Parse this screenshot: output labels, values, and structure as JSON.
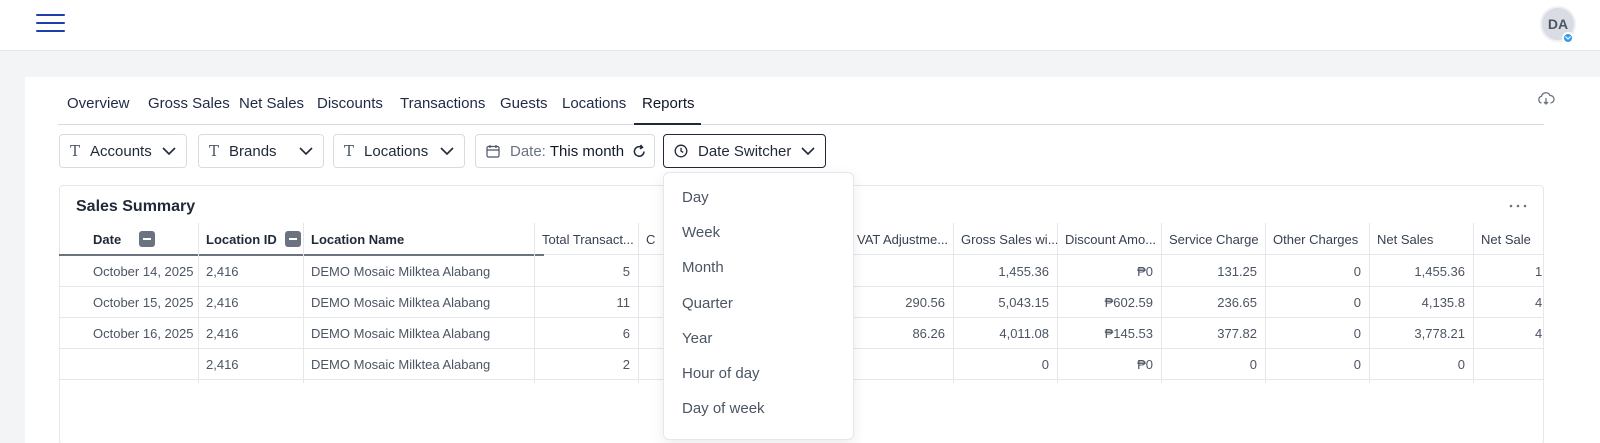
{
  "header": {
    "avatar_initials": "DA"
  },
  "tabs": [
    {
      "label": "Overview"
    },
    {
      "label": "Gross Sales"
    },
    {
      "label": "Net Sales"
    },
    {
      "label": "Discounts"
    },
    {
      "label": "Transactions"
    },
    {
      "label": "Guests"
    },
    {
      "label": "Locations"
    },
    {
      "label": "Reports",
      "active": true
    }
  ],
  "filters": {
    "accounts": "Accounts",
    "brands": "Brands",
    "locations": "Locations",
    "date_label": "Date:",
    "date_value": "This month",
    "date_switcher": "Date Switcher"
  },
  "panel": {
    "title": "Sales Summary"
  },
  "table": {
    "headers": {
      "date": "Date",
      "location_id": "Location ID",
      "location_name": "Location Name",
      "total_transactions": "Total Transact...",
      "c": "C",
      "vat_adjustment": "VAT Adjustme...",
      "gross_sales_wi": "Gross Sales wi...",
      "discount_amount": "Discount Amo...",
      "service_charge": "Service Charge",
      "other_charges": "Other Charges",
      "net_sales": "Net Sales",
      "net_sales_2": "Net Sale"
    },
    "rows": [
      {
        "date": "October 14, 2025",
        "location_id": "2,416",
        "location_name": "DEMO Mosaic Milktea Alabang",
        "total_transactions": "5",
        "vat_adjustment": "",
        "gross_sales_wi": "1,455.36",
        "discount_amount": "₱0",
        "service_charge": "131.25",
        "other_charges": "0",
        "net_sales": "1,455.36",
        "net_sales_2": "1"
      },
      {
        "date": "October 15, 2025",
        "location_id": "2,416",
        "location_name": "DEMO Mosaic Milktea Alabang",
        "total_transactions": "11",
        "vat_adjustment": "290.56",
        "gross_sales_wi": "5,043.15",
        "discount_amount": "₱602.59",
        "service_charge": "236.65",
        "other_charges": "0",
        "net_sales": "4,135.8",
        "net_sales_2": "4"
      },
      {
        "date": "October 16, 2025",
        "location_id": "2,416",
        "location_name": "DEMO Mosaic Milktea Alabang",
        "total_transactions": "6",
        "vat_adjustment": "86.26",
        "gross_sales_wi": "4,011.08",
        "discount_amount": "₱145.53",
        "service_charge": "377.82",
        "other_charges": "0",
        "net_sales": "3,778.21",
        "net_sales_2": "4"
      },
      {
        "date": "",
        "location_id": "2,416",
        "location_name": "DEMO Mosaic Milktea Alabang",
        "total_transactions": "2",
        "vat_adjustment": "",
        "gross_sales_wi": "0",
        "discount_amount": "₱0",
        "service_charge": "0",
        "other_charges": "0",
        "net_sales": "0",
        "net_sales_2": ""
      }
    ]
  },
  "date_switcher_menu": [
    "Day",
    "Week",
    "Month",
    "Quarter",
    "Year",
    "Hour of day",
    "Day of week"
  ],
  "colors": {
    "accent": "#1d3fae",
    "badge": "#2f9bea"
  }
}
